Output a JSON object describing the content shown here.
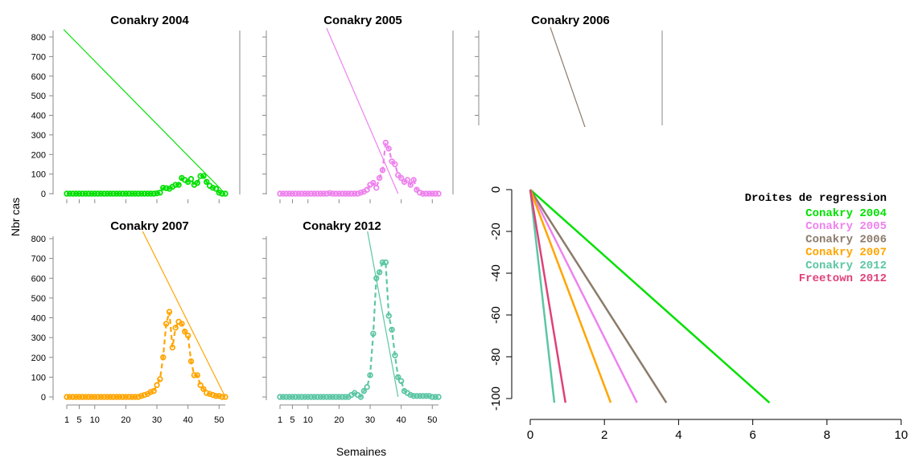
{
  "chart_data": [
    {
      "type": "line",
      "title": "Conakry 2004",
      "color": "#00e000",
      "x": [
        1,
        2,
        3,
        4,
        5,
        6,
        7,
        8,
        9,
        10,
        11,
        12,
        13,
        14,
        15,
        16,
        17,
        18,
        19,
        20,
        21,
        22,
        23,
        24,
        25,
        26,
        27,
        28,
        29,
        30,
        31,
        32,
        33,
        34,
        35,
        36,
        37,
        38,
        39,
        40,
        41,
        42,
        43,
        44,
        45,
        46,
        47,
        48,
        49,
        50,
        51,
        52
      ],
      "y": [
        0,
        0,
        0,
        0,
        0,
        0,
        0,
        0,
        0,
        0,
        0,
        0,
        0,
        0,
        0,
        0,
        0,
        0,
        0,
        0,
        0,
        0,
        0,
        0,
        0,
        0,
        0,
        0,
        0,
        2,
        5,
        30,
        28,
        25,
        35,
        45,
        45,
        80,
        70,
        60,
        75,
        45,
        55,
        90,
        90,
        60,
        40,
        30,
        25,
        5,
        0,
        0
      ],
      "regression": {
        "x": [
          0,
          52
        ],
        "y": [
          838,
          0
        ]
      },
      "ylim": [
        0,
        850
      ],
      "yticks": [
        0,
        100,
        200,
        300,
        400,
        500,
        600,
        700,
        800
      ]
    },
    {
      "type": "line",
      "title": "Conakry 2005",
      "color": "#ee82ee",
      "x": [
        1,
        2,
        3,
        4,
        5,
        6,
        7,
        8,
        9,
        10,
        11,
        12,
        13,
        14,
        15,
        16,
        17,
        18,
        19,
        20,
        21,
        22,
        23,
        24,
        25,
        26,
        27,
        28,
        29,
        30,
        31,
        32,
        33,
        34,
        35,
        36,
        37,
        38,
        39,
        40,
        41,
        42,
        43,
        44,
        45,
        46,
        47,
        48,
        49,
        50,
        51,
        52
      ],
      "y": [
        0,
        0,
        0,
        0,
        0,
        0,
        0,
        0,
        0,
        0,
        0,
        0,
        0,
        0,
        0,
        0,
        3,
        0,
        0,
        0,
        0,
        0,
        0,
        0,
        0,
        0,
        5,
        10,
        20,
        45,
        55,
        30,
        80,
        120,
        260,
        230,
        165,
        150,
        95,
        80,
        60,
        70,
        45,
        70,
        20,
        5,
        0,
        0,
        0,
        0,
        0,
        0
      ],
      "regression": {
        "x": [
          16,
          39
        ],
        "y": [
          845,
          0
        ]
      }
    },
    {
      "type": "line",
      "title": "Conakry 2006",
      "color": "#8b7b6b",
      "regression": {
        "x": [
          20,
          39
        ],
        "y": [
          850,
          0
        ]
      }
    },
    {
      "type": "line",
      "title": "Conakry 2007",
      "color": "#ffa500",
      "x": [
        1,
        2,
        3,
        4,
        5,
        6,
        7,
        8,
        9,
        10,
        11,
        12,
        13,
        14,
        15,
        16,
        17,
        18,
        19,
        20,
        21,
        22,
        23,
        24,
        25,
        26,
        27,
        28,
        29,
        30,
        31,
        32,
        33,
        34,
        35,
        36,
        37,
        38,
        39,
        40,
        41,
        42,
        43,
        44,
        45,
        46,
        47,
        48,
        49,
        50,
        51,
        52
      ],
      "y": [
        0,
        0,
        0,
        0,
        0,
        0,
        0,
        0,
        0,
        0,
        0,
        0,
        0,
        0,
        0,
        0,
        0,
        0,
        0,
        0,
        0,
        0,
        0,
        0,
        5,
        10,
        15,
        25,
        30,
        60,
        90,
        200,
        370,
        430,
        250,
        350,
        380,
        370,
        330,
        310,
        180,
        110,
        110,
        60,
        40,
        20,
        15,
        10,
        5,
        5,
        0,
        0
      ],
      "regression": {
        "x": [
          25,
          52
        ],
        "y": [
          850,
          0
        ]
      }
    },
    {
      "type": "line",
      "title": "Conakry 2012",
      "color": "#5cc6a4",
      "x": [
        1,
        2,
        3,
        4,
        5,
        6,
        7,
        8,
        9,
        10,
        11,
        12,
        13,
        14,
        15,
        16,
        17,
        18,
        19,
        20,
        21,
        22,
        23,
        24,
        25,
        26,
        27,
        28,
        29,
        30,
        31,
        32,
        33,
        34,
        35,
        36,
        37,
        38,
        39,
        40,
        41,
        42,
        43,
        44,
        45,
        46,
        47,
        48,
        49,
        50,
        51,
        52
      ],
      "y": [
        0,
        0,
        0,
        0,
        0,
        0,
        0,
        0,
        0,
        0,
        0,
        0,
        0,
        0,
        0,
        0,
        0,
        0,
        0,
        0,
        0,
        0,
        0,
        10,
        20,
        10,
        0,
        30,
        50,
        110,
        320,
        600,
        630,
        680,
        680,
        410,
        340,
        210,
        100,
        80,
        30,
        20,
        10,
        5,
        5,
        5,
        5,
        5,
        5,
        0,
        0,
        0
      ],
      "regression": {
        "x": [
          29,
          39
        ],
        "y": [
          850,
          0
        ]
      }
    }
  ],
  "shared_axes": {
    "ylabel": "Nbr cas",
    "xlabel": "Semaines",
    "xticks": [
      "1",
      "5",
      "10",
      "20",
      "30",
      "40",
      "50"
    ],
    "yticks": [
      "0",
      "100",
      "200",
      "300",
      "400",
      "500",
      "600",
      "700",
      "800"
    ]
  },
  "regression_panel": {
    "type": "line",
    "legend_title": "Droites de regression",
    "xlim": [
      0,
      10
    ],
    "ylim": [
      -100,
      0
    ],
    "xticks": [
      "0",
      "2",
      "4",
      "6",
      "8",
      "10"
    ],
    "yticks": [
      "0",
      "-20",
      "-40",
      "-60",
      "-80",
      "-100"
    ],
    "series": [
      {
        "name": "Conakry 2004",
        "color": "#00e000",
        "x": [
          0,
          6.45
        ],
        "y": [
          0,
          -102
        ]
      },
      {
        "name": "Conakry 2005",
        "color": "#ee82ee",
        "x": [
          0,
          2.88
        ],
        "y": [
          0,
          -102
        ]
      },
      {
        "name": "Conakry 2006",
        "color": "#8b7b6b",
        "x": [
          0,
          3.67
        ],
        "y": [
          0,
          -102
        ]
      },
      {
        "name": "Conakry 2007",
        "color": "#ffa500",
        "x": [
          0,
          2.17
        ],
        "y": [
          0,
          -102
        ]
      },
      {
        "name": "Conakry 2012",
        "color": "#5cc6a4",
        "x": [
          0,
          0.65
        ],
        "y": [
          0,
          -102
        ]
      },
      {
        "name": "Freetown 2012",
        "color": "#e0407a",
        "x": [
          0,
          0.95
        ],
        "y": [
          0,
          -102
        ]
      }
    ]
  }
}
